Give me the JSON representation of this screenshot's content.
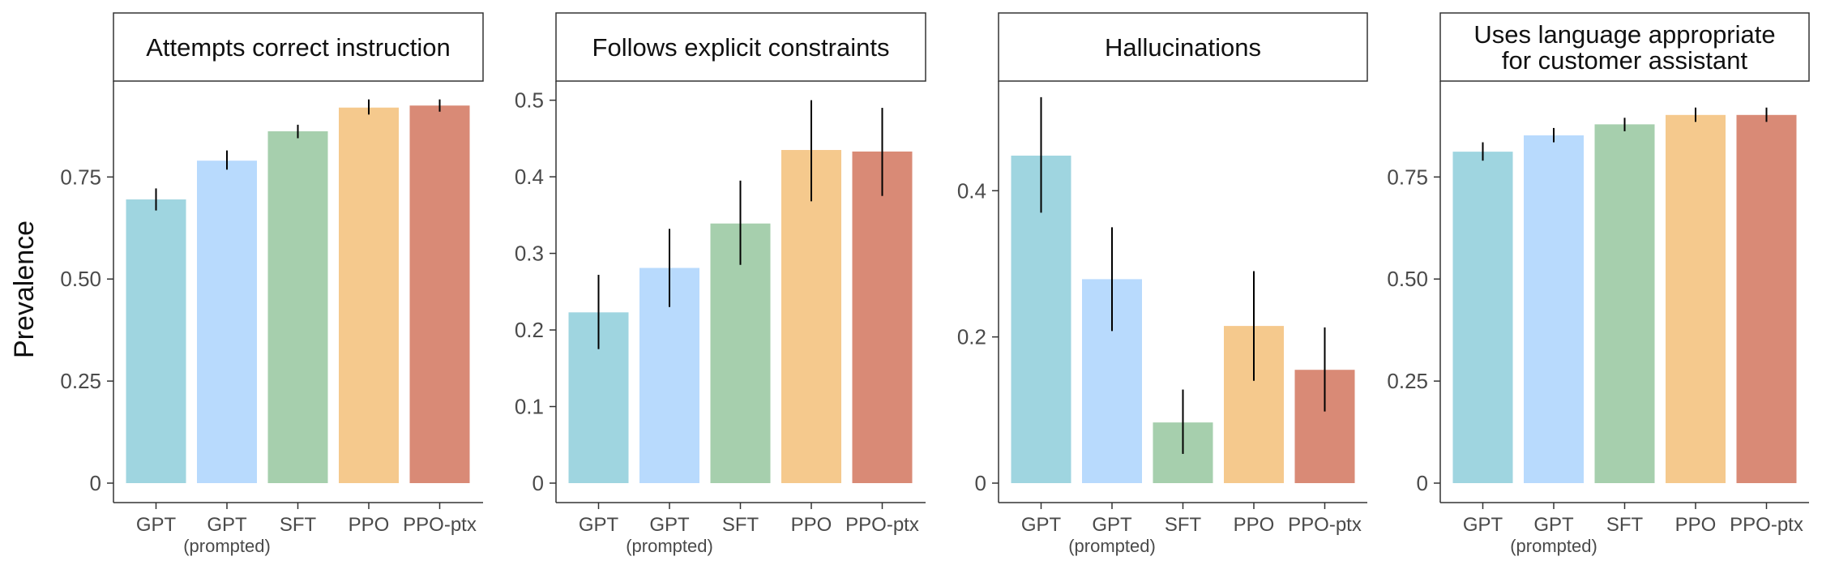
{
  "figure": {
    "ylabel": "Prevalence"
  },
  "colors": {
    "GPT": "#9fd5e0",
    "GPT (prompted)": "#b8dafd",
    "SFT": "#a6cfad",
    "PPO": "#f5c98d",
    "PPO-ptx": "#d98a76",
    "errorbar": "#000000",
    "axis": "#333333"
  },
  "chart_data": [
    {
      "type": "bar",
      "title": [
        "Attempts correct instruction"
      ],
      "categories": [
        {
          "name": "GPT",
          "sub": ""
        },
        {
          "name": "GPT",
          "sub": "(prompted)"
        },
        {
          "name": "SFT",
          "sub": ""
        },
        {
          "name": "PPO",
          "sub": ""
        },
        {
          "name": "PPO-ptx",
          "sub": ""
        }
      ],
      "color_keys": [
        "GPT",
        "GPT (prompted)",
        "SFT",
        "PPO",
        "PPO-ptx"
      ],
      "values": [
        0.695,
        0.79,
        0.862,
        0.92,
        0.925
      ],
      "err_low": [
        0.668,
        0.768,
        0.845,
        0.903,
        0.91
      ],
      "err_high": [
        0.722,
        0.815,
        0.878,
        0.94,
        0.94
      ],
      "ylim": [
        0,
        0.985
      ],
      "yticks": [
        0,
        0.25,
        0.5,
        0.75
      ],
      "ytick_labels": [
        "0",
        "0.25",
        "0.50",
        "0.75"
      ]
    },
    {
      "type": "bar",
      "title": [
        "Follows explicit constraints"
      ],
      "categories": [
        {
          "name": "GPT",
          "sub": ""
        },
        {
          "name": "GPT",
          "sub": "(prompted)"
        },
        {
          "name": "SFT",
          "sub": ""
        },
        {
          "name": "PPO",
          "sub": ""
        },
        {
          "name": "PPO-ptx",
          "sub": ""
        }
      ],
      "color_keys": [
        "GPT",
        "GPT (prompted)",
        "SFT",
        "PPO",
        "PPO-ptx"
      ],
      "values": [
        0.223,
        0.281,
        0.339,
        0.435,
        0.433
      ],
      "err_low": [
        0.175,
        0.23,
        0.285,
        0.368,
        0.375
      ],
      "err_high": [
        0.272,
        0.332,
        0.395,
        0.5,
        0.49
      ],
      "ylim": [
        0,
        0.525
      ],
      "yticks": [
        0,
        0.1,
        0.2,
        0.3,
        0.4,
        0.5
      ],
      "ytick_labels": [
        "0",
        "0.1",
        "0.2",
        "0.3",
        "0.4",
        "0.5"
      ]
    },
    {
      "type": "bar",
      "title": [
        "Hallucinations"
      ],
      "categories": [
        {
          "name": "GPT",
          "sub": ""
        },
        {
          "name": "GPT",
          "sub": "(prompted)"
        },
        {
          "name": "SFT",
          "sub": ""
        },
        {
          "name": "PPO",
          "sub": ""
        },
        {
          "name": "PPO-ptx",
          "sub": ""
        }
      ],
      "color_keys": [
        "GPT",
        "GPT (prompted)",
        "SFT",
        "PPO",
        "PPO-ptx"
      ],
      "values": [
        0.448,
        0.279,
        0.083,
        0.215,
        0.155
      ],
      "err_low": [
        0.37,
        0.208,
        0.04,
        0.14,
        0.098
      ],
      "err_high": [
        0.528,
        0.35,
        0.128,
        0.29,
        0.213
      ],
      "ylim": [
        0,
        0.55
      ],
      "yticks": [
        0,
        0.2,
        0.4
      ],
      "ytick_labels": [
        "0",
        "0.2",
        "0.4"
      ]
    },
    {
      "type": "bar",
      "title": [
        "Uses language appropriate",
        "for customer assistant"
      ],
      "categories": [
        {
          "name": "GPT",
          "sub": ""
        },
        {
          "name": "GPT",
          "sub": "(prompted)"
        },
        {
          "name": "SFT",
          "sub": ""
        },
        {
          "name": "PPO",
          "sub": ""
        },
        {
          "name": "PPO-ptx",
          "sub": ""
        }
      ],
      "color_keys": [
        "GPT",
        "GPT (prompted)",
        "SFT",
        "PPO",
        "PPO-ptx"
      ],
      "values": [
        0.812,
        0.852,
        0.879,
        0.902,
        0.902
      ],
      "err_low": [
        0.79,
        0.835,
        0.862,
        0.885,
        0.885
      ],
      "err_high": [
        0.835,
        0.87,
        0.895,
        0.92,
        0.92
      ],
      "ylim": [
        0,
        0.985
      ],
      "yticks": [
        0,
        0.25,
        0.5,
        0.75
      ],
      "ytick_labels": [
        "0",
        "0.25",
        "0.50",
        "0.75"
      ]
    }
  ]
}
